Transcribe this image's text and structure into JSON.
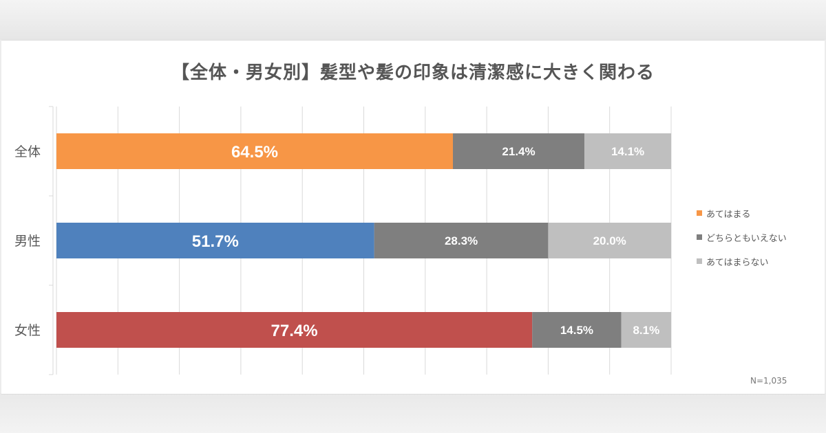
{
  "colors": {
    "background": "#ffffff",
    "grid": "#d9d9d9",
    "axis_text": "#595959",
    "category_colors": [
      "#f79646",
      "#4f81bd",
      "#c0504d"
    ],
    "neutral": "#7f7f7f",
    "disagree": "#bfbfbf"
  },
  "chart_data": {
    "type": "bar",
    "orientation": "horizontal",
    "stacked": true,
    "percent_stacked": true,
    "title": "【全体・男女別】髪型や髪の印象は清潔感に大きく関わる",
    "categories": [
      "全体",
      "男性",
      "女性"
    ],
    "series": [
      {
        "name": "あてはまる",
        "values": [
          64.5,
          51.7,
          77.4
        ],
        "labels": [
          "64.5%",
          "51.7%",
          "77.4%"
        ]
      },
      {
        "name": "どちらともいえない",
        "values": [
          21.4,
          28.3,
          14.5
        ],
        "labels": [
          "21.4%",
          "28.3%",
          "14.5%"
        ]
      },
      {
        "name": "あてはまらない",
        "values": [
          14.1,
          20.0,
          8.1
        ],
        "labels": [
          "14.1%",
          "20.0%",
          "8.1%"
        ]
      }
    ],
    "xlim": [
      0,
      100
    ],
    "grid": true,
    "legend_position": "right",
    "note": "N=1,035"
  }
}
